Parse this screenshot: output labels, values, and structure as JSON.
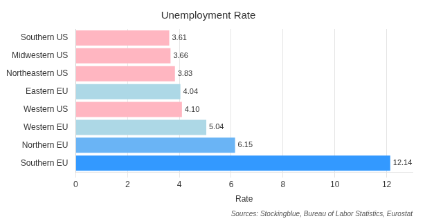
{
  "chart_data": {
    "type": "bar",
    "orientation": "horizontal",
    "title": "Unemployment Rate",
    "xlabel": "Rate",
    "categories": [
      "Southern US",
      "Midwestern US",
      "Northeastern US",
      "Eastern EU",
      "Western US",
      "Western EU",
      "Northern EU",
      "Southern EU"
    ],
    "values": [
      3.61,
      3.66,
      3.83,
      4.04,
      4.1,
      5.04,
      6.15,
      12.14
    ],
    "value_labels": [
      "3.61",
      "3.66",
      "3.83",
      "4.04",
      "4.10",
      "5.04",
      "6.15",
      "12.14"
    ],
    "colors": [
      "#ffb6c1",
      "#ffb6c1",
      "#ffb6c1",
      "#add8e6",
      "#ffb6c1",
      "#add8e6",
      "#6ab4f5",
      "#3399ff"
    ],
    "xlim": [
      0,
      13
    ],
    "xticks": [
      0,
      2,
      4,
      6,
      8,
      10,
      12
    ],
    "grid": true,
    "data_labels": true,
    "annotations": [
      "Sources: Stockingblue, Bureau of Labor Statistics, Eurostat"
    ]
  }
}
